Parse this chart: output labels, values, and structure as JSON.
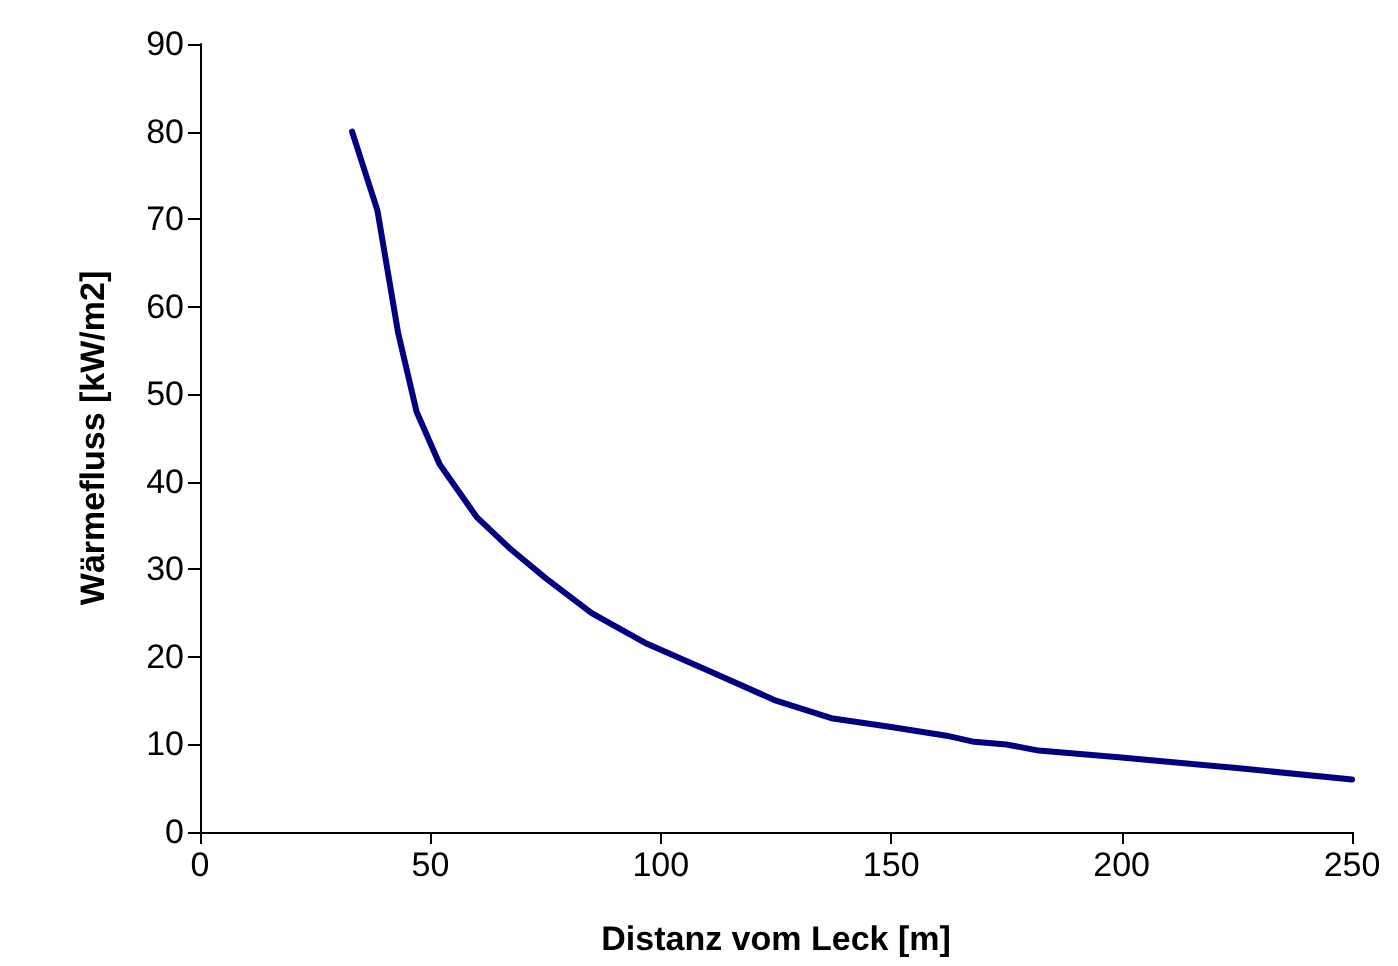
{
  "chart_data": {
    "type": "line",
    "xlabel": "Distanz vom Leck [m]",
    "ylabel": "Wärmefluss [kW/m2]",
    "series": [
      {
        "color": "#000080",
        "x": [
          33,
          38.5,
          43,
          47,
          52,
          60,
          67,
          75,
          85,
          97,
          110,
          125,
          137,
          150,
          162,
          168,
          175,
          182,
          200,
          225,
          250
        ],
        "values": [
          80,
          71,
          57,
          48,
          42,
          36,
          32.5,
          29,
          25,
          21.5,
          18.5,
          15,
          13,
          12,
          11,
          10.3,
          10,
          9.3,
          8.5,
          7.3,
          6
        ]
      }
    ],
    "xlim": [
      0,
      250
    ],
    "xticks": [
      0,
      50,
      100,
      150,
      200,
      250
    ],
    "ylim": [
      0,
      90
    ],
    "yticks": [
      0,
      10,
      20,
      30,
      40,
      50,
      60,
      70,
      80,
      90
    ],
    "grid": false,
    "marker": "none",
    "line_style": "solid"
  }
}
